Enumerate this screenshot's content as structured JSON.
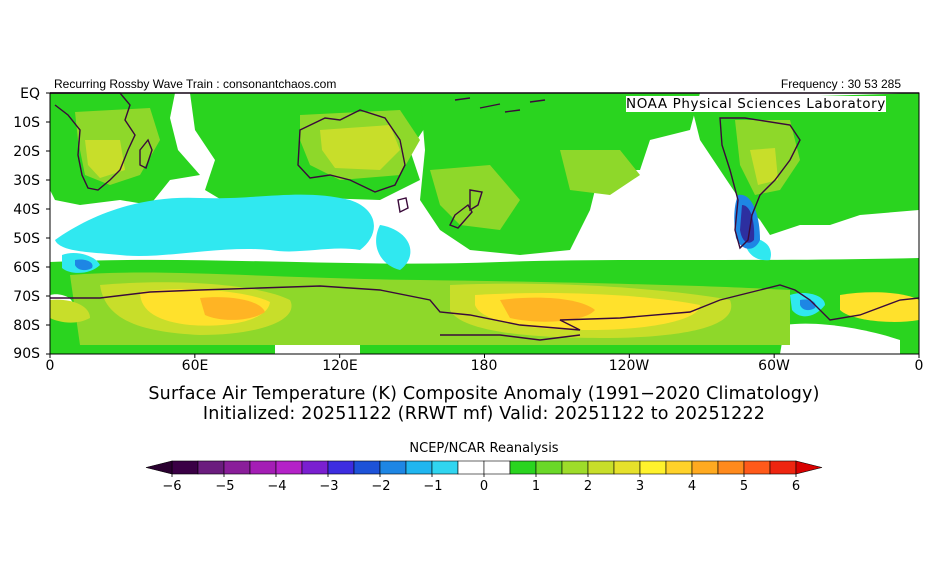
{
  "header": {
    "left_text": "Recurring Rossby Wave Train : consonantchaos.com",
    "right_text": "Frequency : 30 53 285",
    "lab_text": "NOAA Physical Sciences Laboratory"
  },
  "axes": {
    "lat_labels": [
      "EQ",
      "10S",
      "20S",
      "30S",
      "40S",
      "50S",
      "60S",
      "70S",
      "80S",
      "90S"
    ],
    "lon_labels": [
      "0",
      "60E",
      "120E",
      "180",
      "120W",
      "60W",
      "0"
    ]
  },
  "title": {
    "line1": "Surface Air Temperature (K) Composite Anomaly (1991−2020 Climatology)",
    "line2": "Initialized: 20251122 (RRWT mf) Valid: 20251122 to 20251222"
  },
  "colorbar": {
    "caption": "NCEP/NCAR Reanalysis",
    "labels": [
      "−6",
      "−5",
      "−4",
      "−3",
      "−2",
      "−1",
      "0",
      "1",
      "2",
      "3",
      "4",
      "5",
      "6"
    ],
    "colors": [
      "#3a0045",
      "#6b1d7e",
      "#8a1e9a",
      "#a41eb5",
      "#b422c8",
      "#7a1fd0",
      "#3d2de0",
      "#1d52d8",
      "#1e86e4",
      "#20b6f0",
      "#30d5f0",
      "#ffffff",
      "#ffffff",
      "#2ad41f",
      "#6ad828",
      "#9edc2a",
      "#c8de2a",
      "#e6e12b",
      "#fff22c",
      "#ffd22a",
      "#ffaa20",
      "#ff8a1d",
      "#ff5a1a",
      "#ee2510"
    ],
    "under_color": "#2a0030",
    "over_color": "#d80000"
  },
  "palette": {
    "green": "#2ad41f",
    "lightgreen": "#8ed82a",
    "yellowgreen": "#c8de2a",
    "yellow": "#ffe12c",
    "orange": "#ffb424",
    "cyan": "#30e8f0",
    "blue": "#1e8ae4",
    "deep": "#2d2fa0",
    "coast": "#3a0a3a"
  }
}
